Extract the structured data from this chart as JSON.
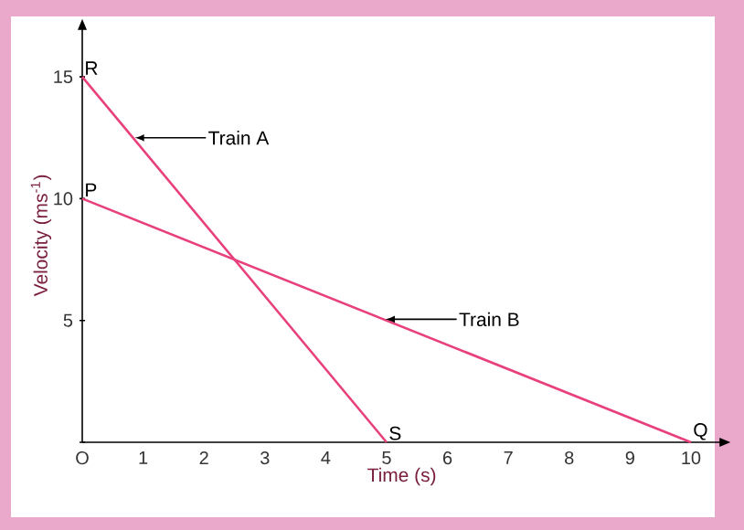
{
  "chart_data": {
    "type": "line",
    "xlabel": "Time (s)",
    "ylabel": "Velocity (ms$^{-1}$)",
    "xlim": [
      0,
      10.5
    ],
    "ylim": [
      0,
      17
    ],
    "xticks": [
      {
        "value": 0,
        "label": "O"
      },
      1,
      2,
      3,
      4,
      5,
      6,
      7,
      8,
      9,
      10
    ],
    "yticks": [
      {
        "value": 0,
        "label": null
      },
      5,
      10,
      15
    ],
    "series": [
      {
        "color": "#e8407c",
        "x": [
          0,
          5
        ],
        "values": [
          15,
          0
        ]
      },
      {
        "color": "#e8407c",
        "x": [
          0,
          10
        ],
        "values": [
          10,
          0
        ]
      }
    ],
    "annotations": [
      {
        "text": "R",
        "x": 0,
        "y": 15
      },
      {
        "text": "P",
        "x": 0,
        "y": 10
      },
      {
        "text": "S",
        "x": 5,
        "y": 0
      },
      {
        "text": "Q",
        "x": 10,
        "y": 0
      },
      {
        "text": "Train A",
        "x": 0.83,
        "y": 12.5
      },
      {
        "text": "Train B",
        "x": 4.95,
        "y": 5.05
      }
    ],
    "grid": false,
    "marker": "none",
    "line_style": "solid"
  }
}
